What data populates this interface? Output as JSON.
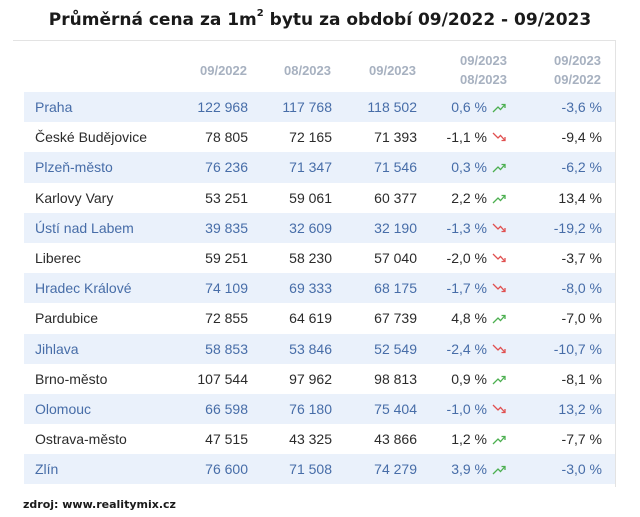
{
  "title": {
    "text": "Průměrná cena za 1m",
    "superscript": "2",
    "rest": " bytu za období  09/2022  -  09/2023"
  },
  "columns": {
    "c1": "09/2022",
    "c2": "08/2023",
    "c3": "09/2023",
    "c4_line1": "09/2023",
    "c4_line2": "08/2023",
    "c5_line1": "09/2023",
    "c5_line2": "09/2022"
  },
  "colors": {
    "up_arrow": "#4caf50",
    "down_arrow": "#e05050",
    "alt_row_bg": "#eaf1fb",
    "alt_row_text": "#476da8"
  },
  "rows": [
    {
      "city": "Praha",
      "p2022_09": "122 968",
      "p2023_08": "117 768",
      "p2023_09": "118 502",
      "mom": "0,6 %",
      "trend": "up",
      "yoy": "-3,6 %"
    },
    {
      "city": "České Budějovice",
      "p2022_09": "78 805",
      "p2023_08": "72 165",
      "p2023_09": "71 393",
      "mom": "-1,1 %",
      "trend": "down",
      "yoy": "-9,4 %"
    },
    {
      "city": "Plzeň-město",
      "p2022_09": "76 236",
      "p2023_08": "71 347",
      "p2023_09": "71 546",
      "mom": "0,3 %",
      "trend": "up",
      "yoy": "-6,2 %"
    },
    {
      "city": "Karlovy Vary",
      "p2022_09": "53 251",
      "p2023_08": "59 061",
      "p2023_09": "60 377",
      "mom": "2,2 %",
      "trend": "up",
      "yoy": "13,4 %"
    },
    {
      "city": "Ústí nad Labem",
      "p2022_09": "39 835",
      "p2023_08": "32 609",
      "p2023_09": "32 190",
      "mom": "-1,3 %",
      "trend": "down",
      "yoy": "-19,2 %"
    },
    {
      "city": "Liberec",
      "p2022_09": "59 251",
      "p2023_08": "58 230",
      "p2023_09": "57 040",
      "mom": "-2,0 %",
      "trend": "down",
      "yoy": "-3,7 %"
    },
    {
      "city": "Hradec Králové",
      "p2022_09": "74 109",
      "p2023_08": "69 333",
      "p2023_09": "68 175",
      "mom": "-1,7 %",
      "trend": "down",
      "yoy": "-8,0 %"
    },
    {
      "city": "Pardubice",
      "p2022_09": "72 855",
      "p2023_08": "64 619",
      "p2023_09": "67 739",
      "mom": "4,8 %",
      "trend": "up",
      "yoy": "-7,0 %"
    },
    {
      "city": "Jihlava",
      "p2022_09": "58 853",
      "p2023_08": "53 846",
      "p2023_09": "52 549",
      "mom": "-2,4 %",
      "trend": "down",
      "yoy": "-10,7 %"
    },
    {
      "city": "Brno-město",
      "p2022_09": "107 544",
      "p2023_08": "97 962",
      "p2023_09": "98 813",
      "mom": "0,9 %",
      "trend": "up",
      "yoy": "-8,1 %"
    },
    {
      "city": "Olomouc",
      "p2022_09": "66 598",
      "p2023_08": "76 180",
      "p2023_09": "75 404",
      "mom": "-1,0 %",
      "trend": "down",
      "yoy": "13,2 %"
    },
    {
      "city": "Ostrava-město",
      "p2022_09": "47 515",
      "p2023_08": "43 325",
      "p2023_09": "43 866",
      "mom": "1,2 %",
      "trend": "up",
      "yoy": "-7,7 %"
    },
    {
      "city": "Zlín",
      "p2022_09": "76 600",
      "p2023_08": "71 508",
      "p2023_09": "74 279",
      "mom": "3,9 %",
      "trend": "up",
      "yoy": "-3,0 %"
    }
  ],
  "footer": "zdroj: www.realitymix.cz"
}
